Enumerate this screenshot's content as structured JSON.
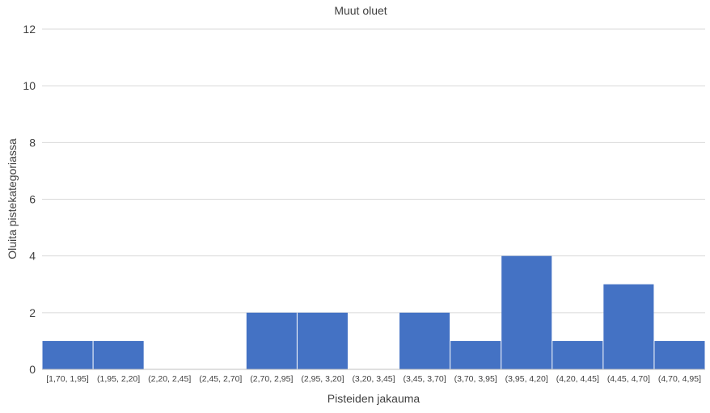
{
  "chart_data": {
    "type": "bar",
    "title": "Muut oluet",
    "xlabel": "Pisteiden jakauma",
    "ylabel": "Oluita pistekategoriassa",
    "categories": [
      "[1,70, 1,95]",
      "(1,95, 2,20]",
      "(2,20, 2,45]",
      "(2,45, 2,70]",
      "(2,70, 2,95]",
      "(2,95, 3,20]",
      "(3,20, 3,45]",
      "(3,45, 3,70]",
      "(3,70, 3,95]",
      "(3,95, 4,20]",
      "(4,20, 4,45]",
      "(4,45, 4,70]",
      "(4,70, 4,95]"
    ],
    "values": [
      1,
      1,
      0,
      0,
      2,
      2,
      0,
      2,
      1,
      4,
      1,
      3,
      1
    ],
    "ylim": [
      0,
      12
    ],
    "yticks": [
      0,
      2,
      4,
      6,
      8,
      10,
      12
    ],
    "grid": true,
    "legend": "none",
    "bar_color": "#4472c4",
    "grid_color": "#d9d9d9"
  }
}
